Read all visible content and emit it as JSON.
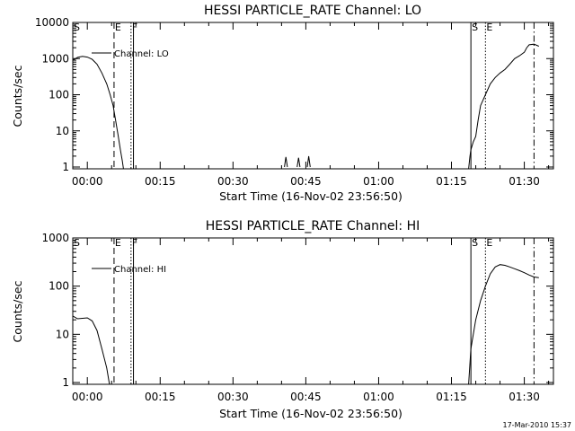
{
  "footer": "17-Mar-2010 15:37",
  "chart_data": [
    {
      "type": "line",
      "title": "HESSI PARTICLE_RATE Channel: LO",
      "xlabel": "Start Time (16-Nov-02 23:56:50)",
      "ylabel": "Counts/sec",
      "y_scale": "log",
      "ylim": [
        1,
        10000
      ],
      "xlim": [
        -3,
        96
      ],
      "x_ticks": [
        0,
        15,
        30,
        45,
        60,
        75,
        90
      ],
      "x_tick_labels": [
        "00:00",
        "00:15",
        "00:30",
        "00:45",
        "01:00",
        "01:15",
        "01:30"
      ],
      "y_ticks": [
        1,
        10,
        100,
        1000,
        10000
      ],
      "y_tick_labels": [
        "1",
        "10",
        "100",
        "1000",
        "10000"
      ],
      "legend": {
        "text": "Channel: LO",
        "position": "top-left"
      },
      "markers": [
        {
          "label": "S",
          "x": -3,
          "style": "solid"
        },
        {
          "label": "E",
          "x": 5.5,
          "style": "dashed"
        },
        {
          "label": "F",
          "x": 9,
          "style": "dotted"
        },
        {
          "label": "",
          "x": 9.5,
          "style": "solid"
        },
        {
          "label": "S",
          "x": 79,
          "style": "solid"
        },
        {
          "label": "E",
          "x": 82,
          "style": "dotted"
        },
        {
          "label": "",
          "x": 92,
          "style": "dashdot"
        }
      ],
      "series": [
        {
          "segments": [
            [
              [
                -3,
                900
              ],
              [
                -2,
                1080
              ],
              [
                -1,
                1150
              ],
              [
                0,
                1100
              ],
              [
                1,
                950
              ],
              [
                2,
                700
              ],
              [
                3,
                400
              ],
              [
                4,
                200
              ],
              [
                4.7,
                100
              ],
              [
                5.3,
                50
              ],
              [
                5.8,
                20
              ],
              [
                6.3,
                8
              ],
              [
                6.8,
                3
              ],
              [
                7.2,
                1.5
              ],
              [
                7.5,
                0.8
              ]
            ],
            [
              [
                40.6,
                1
              ],
              [
                40.9,
                1.9
              ],
              [
                41.2,
                1
              ]
            ],
            [
              [
                43.2,
                1
              ],
              [
                43.5,
                1.8
              ],
              [
                43.8,
                1
              ]
            ],
            [
              [
                45.3,
                1
              ],
              [
                45.6,
                2
              ],
              [
                45.9,
                1
              ]
            ],
            [
              [
                78.5,
                0.8
              ],
              [
                78.8,
                2
              ],
              [
                79,
                3
              ],
              [
                79.5,
                5
              ],
              [
                80,
                7
              ],
              [
                80.5,
                20
              ],
              [
                81,
                50
              ],
              [
                82,
                100
              ],
              [
                83,
                200
              ],
              [
                84,
                300
              ],
              [
                85,
                400
              ],
              [
                86,
                500
              ],
              [
                87,
                700
              ],
              [
                88,
                1000
              ],
              [
                89,
                1200
              ],
              [
                90,
                1500
              ],
              [
                90.5,
                2000
              ],
              [
                91,
                2400
              ],
              [
                92,
                2500
              ],
              [
                93,
                2200
              ]
            ]
          ]
        }
      ]
    },
    {
      "type": "line",
      "title": "HESSI PARTICLE_RATE Channel: HI",
      "xlabel": "Start Time (16-Nov-02 23:56:50)",
      "ylabel": "Counts/sec",
      "y_scale": "log",
      "ylim": [
        1,
        1000
      ],
      "xlim": [
        -3,
        96
      ],
      "x_ticks": [
        0,
        15,
        30,
        45,
        60,
        75,
        90
      ],
      "x_tick_labels": [
        "00:00",
        "00:15",
        "00:30",
        "00:45",
        "01:00",
        "01:15",
        "01:30"
      ],
      "y_ticks": [
        1,
        10,
        100,
        1000
      ],
      "y_tick_labels": [
        "1",
        "10",
        "100",
        "1000"
      ],
      "legend": {
        "text": "Channel: HI",
        "position": "top-left"
      },
      "markers": [
        {
          "label": "S",
          "x": -3,
          "style": "solid"
        },
        {
          "label": "E",
          "x": 5.5,
          "style": "dashed"
        },
        {
          "label": "F",
          "x": 9,
          "style": "dotted"
        },
        {
          "label": "",
          "x": 9.5,
          "style": "solid"
        },
        {
          "label": "S",
          "x": 79,
          "style": "solid"
        },
        {
          "label": "E",
          "x": 82,
          "style": "dotted"
        },
        {
          "label": "",
          "x": 92,
          "style": "dashdot"
        }
      ],
      "series": [
        {
          "segments": [
            [
              [
                -3,
                24
              ],
              [
                -2,
                21
              ],
              [
                0,
                22
              ],
              [
                1,
                19
              ],
              [
                2,
                12
              ],
              [
                3,
                5
              ],
              [
                4,
                2
              ],
              [
                4.5,
                1
              ],
              [
                4.7,
                0.8
              ]
            ],
            [
              [
                78.5,
                0.8
              ],
              [
                79,
                5
              ],
              [
                80,
                20
              ],
              [
                81,
                50
              ],
              [
                82,
                100
              ],
              [
                83,
                180
              ],
              [
                84,
                250
              ],
              [
                85,
                280
              ],
              [
                86,
                270
              ],
              [
                87,
                250
              ],
              [
                88,
                230
              ],
              [
                89,
                210
              ],
              [
                90,
                190
              ],
              [
                91,
                170
              ],
              [
                92,
                155
              ],
              [
                93,
                150
              ]
            ]
          ]
        }
      ]
    }
  ]
}
